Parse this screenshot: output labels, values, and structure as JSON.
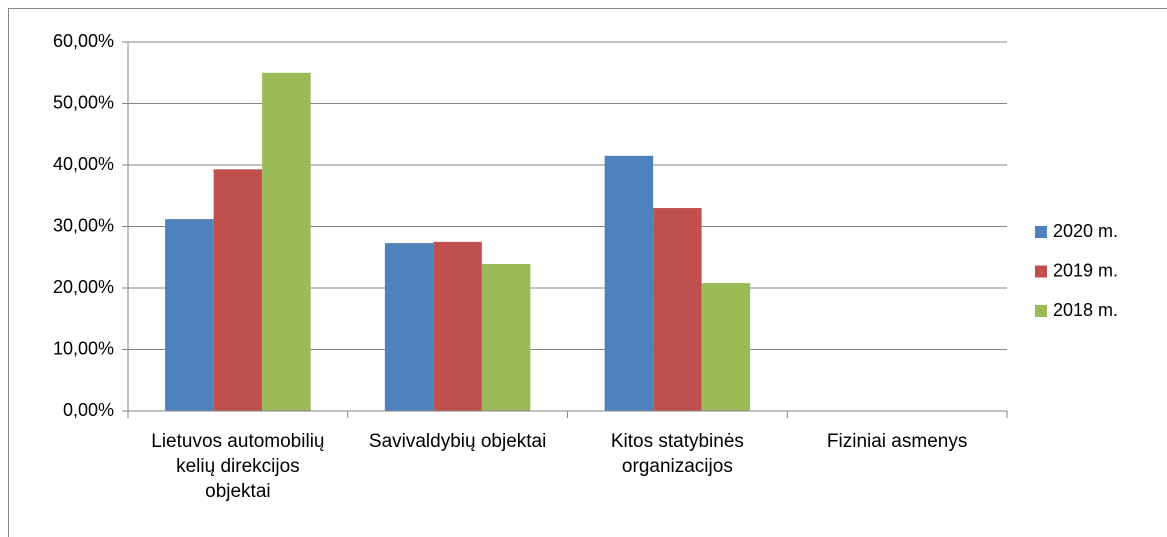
{
  "chart_data": {
    "type": "bar",
    "categories": [
      "Lietuvos automobilių kelių direkcijos objektai",
      "Savivaldybių objektai",
      "Kitos statybinės organizacijos",
      "Fiziniai asmenys"
    ],
    "series": [
      {
        "name": "2020 m.",
        "color": "#4f81bd",
        "values": [
          31.2,
          27.3,
          41.5,
          0
        ]
      },
      {
        "name": "2019 m.",
        "color": "#c0504d",
        "values": [
          39.3,
          27.5,
          33.0,
          0
        ]
      },
      {
        "name": "2018 m.",
        "color": "#9bbb59",
        "values": [
          55.0,
          23.9,
          20.8,
          0
        ]
      }
    ],
    "ylim": [
      0,
      60
    ],
    "yticks": [
      {
        "value": 0,
        "label": "0,00%"
      },
      {
        "value": 10,
        "label": "10,00%"
      },
      {
        "value": 20,
        "label": "20,00%"
      },
      {
        "value": 30,
        "label": "30,00%"
      },
      {
        "value": 40,
        "label": "40,00%"
      },
      {
        "value": 50,
        "label": "50,00%"
      },
      {
        "value": 60,
        "label": "60,00%"
      }
    ],
    "grid": true,
    "legend": "right"
  }
}
